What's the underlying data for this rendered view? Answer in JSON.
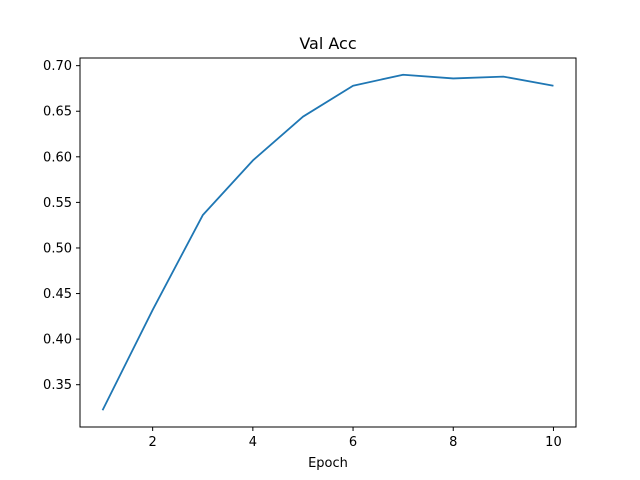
{
  "chart_data": {
    "type": "line",
    "title": "Val Acc",
    "xlabel": "Epoch",
    "ylabel": "",
    "x": [
      1,
      2,
      3,
      4,
      5,
      6,
      7,
      8,
      9,
      10
    ],
    "series": [
      {
        "values": [
          0.322,
          0.432,
          0.536,
          0.596,
          0.644,
          0.678,
          0.69,
          0.686,
          0.688,
          0.678
        ],
        "color": "#1f77b4"
      }
    ],
    "xlim": [
      0.55,
      10.45
    ],
    "ylim": [
      0.3036,
      0.7084
    ],
    "xticks": [
      2,
      4,
      6,
      8,
      10
    ],
    "xtick_labels": [
      "2",
      "4",
      "6",
      "8",
      "10"
    ],
    "yticks": [
      0.35,
      0.4,
      0.45,
      0.5,
      0.55,
      0.6,
      0.65,
      0.7
    ],
    "ytick_labels": [
      "0.35",
      "0.40",
      "0.45",
      "0.50",
      "0.55",
      "0.60",
      "0.65",
      "0.70"
    ],
    "grid": false,
    "legend": "none"
  }
}
